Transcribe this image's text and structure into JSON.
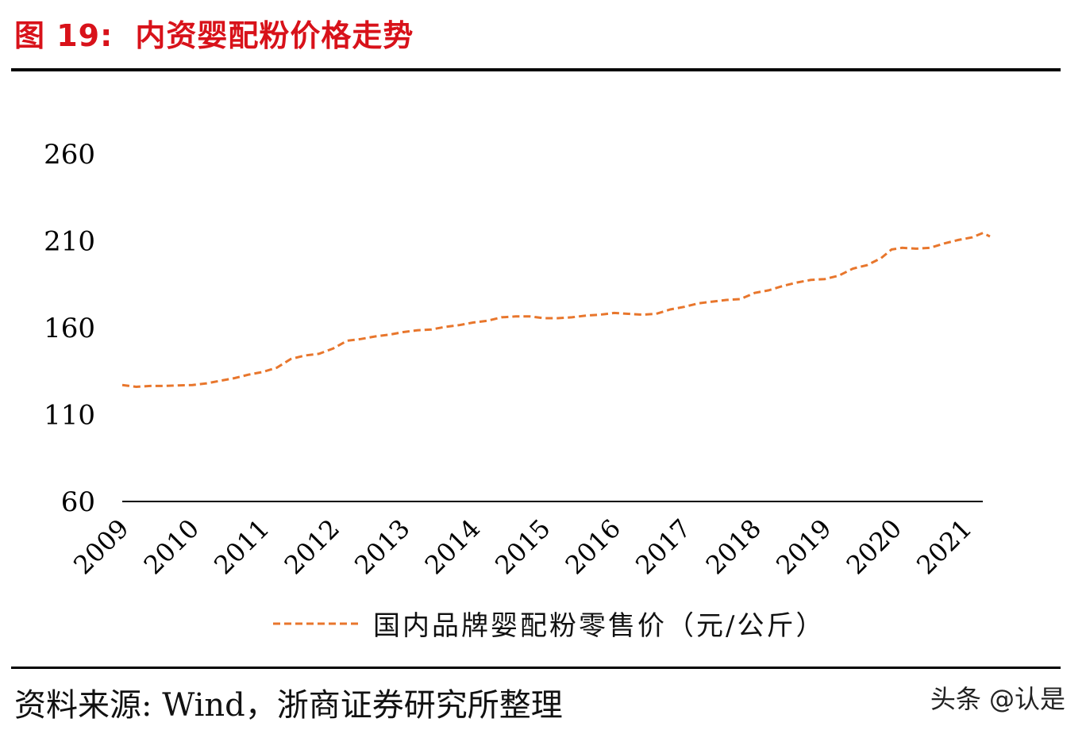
{
  "figure": {
    "number": "图 19:",
    "title": "内资婴配粉价格走势"
  },
  "source": "资料来源: Wind，浙商证券研究所整理",
  "watermark": "头条 @认是",
  "colors": {
    "title": "#d8121a",
    "series": "#e8762c",
    "axis": "#000000"
  },
  "chart_data": {
    "type": "line",
    "ylim": [
      60,
      260
    ],
    "yticks": [
      "60",
      "110",
      "160",
      "210",
      "260"
    ],
    "xlim": [
      2009,
      2021.3
    ],
    "xticks": [
      "2009",
      "2010",
      "2011",
      "2012",
      "2013",
      "2014",
      "2015",
      "2016",
      "2017",
      "2018",
      "2019",
      "2020",
      "2021"
    ],
    "grid": false,
    "legend_position": "bottom-center",
    "series": [
      {
        "name": "国内品牌婴配粉零售价（元/公斤）",
        "style": "dashed",
        "color": "#e8762c",
        "points": [
          [
            2009.0,
            127.0
          ],
          [
            2009.2,
            126.0
          ],
          [
            2009.4,
            126.5
          ],
          [
            2009.6,
            126.5
          ],
          [
            2009.8,
            126.8
          ],
          [
            2010.0,
            127.0
          ],
          [
            2010.2,
            128.0
          ],
          [
            2010.4,
            129.5
          ],
          [
            2010.6,
            131.0
          ],
          [
            2010.8,
            133.0
          ],
          [
            2011.0,
            134.5
          ],
          [
            2011.2,
            137.0
          ],
          [
            2011.4,
            142.0
          ],
          [
            2011.6,
            144.0
          ],
          [
            2011.8,
            145.0
          ],
          [
            2012.0,
            148.0
          ],
          [
            2012.2,
            152.5
          ],
          [
            2012.4,
            153.5
          ],
          [
            2012.6,
            155.0
          ],
          [
            2012.8,
            156.0
          ],
          [
            2013.0,
            157.5
          ],
          [
            2013.2,
            158.5
          ],
          [
            2013.4,
            159.0
          ],
          [
            2013.6,
            160.5
          ],
          [
            2013.8,
            161.5
          ],
          [
            2014.0,
            163.0
          ],
          [
            2014.2,
            164.0
          ],
          [
            2014.4,
            166.0
          ],
          [
            2014.6,
            166.5
          ],
          [
            2014.8,
            166.5
          ],
          [
            2015.0,
            165.5
          ],
          [
            2015.2,
            165.5
          ],
          [
            2015.4,
            166.0
          ],
          [
            2015.6,
            167.0
          ],
          [
            2015.8,
            167.5
          ],
          [
            2016.0,
            168.5
          ],
          [
            2016.2,
            168.0
          ],
          [
            2016.4,
            167.5
          ],
          [
            2016.6,
            168.0
          ],
          [
            2016.8,
            170.5
          ],
          [
            2017.0,
            172.0
          ],
          [
            2017.2,
            174.0
          ],
          [
            2017.4,
            175.0
          ],
          [
            2017.6,
            176.0
          ],
          [
            2017.8,
            176.5
          ],
          [
            2018.0,
            180.0
          ],
          [
            2018.2,
            181.5
          ],
          [
            2018.4,
            184.0
          ],
          [
            2018.6,
            186.0
          ],
          [
            2018.8,
            187.5
          ],
          [
            2019.0,
            188.0
          ],
          [
            2019.2,
            190.0
          ],
          [
            2019.4,
            194.0
          ],
          [
            2019.6,
            196.0
          ],
          [
            2019.8,
            200.0
          ],
          [
            2019.95,
            205.0
          ],
          [
            2020.1,
            206.0
          ],
          [
            2020.3,
            205.5
          ],
          [
            2020.5,
            206.0
          ],
          [
            2020.7,
            208.5
          ],
          [
            2020.9,
            210.5
          ],
          [
            2021.1,
            212.0
          ],
          [
            2021.25,
            214.5
          ],
          [
            2021.35,
            212.5
          ]
        ]
      }
    ]
  }
}
